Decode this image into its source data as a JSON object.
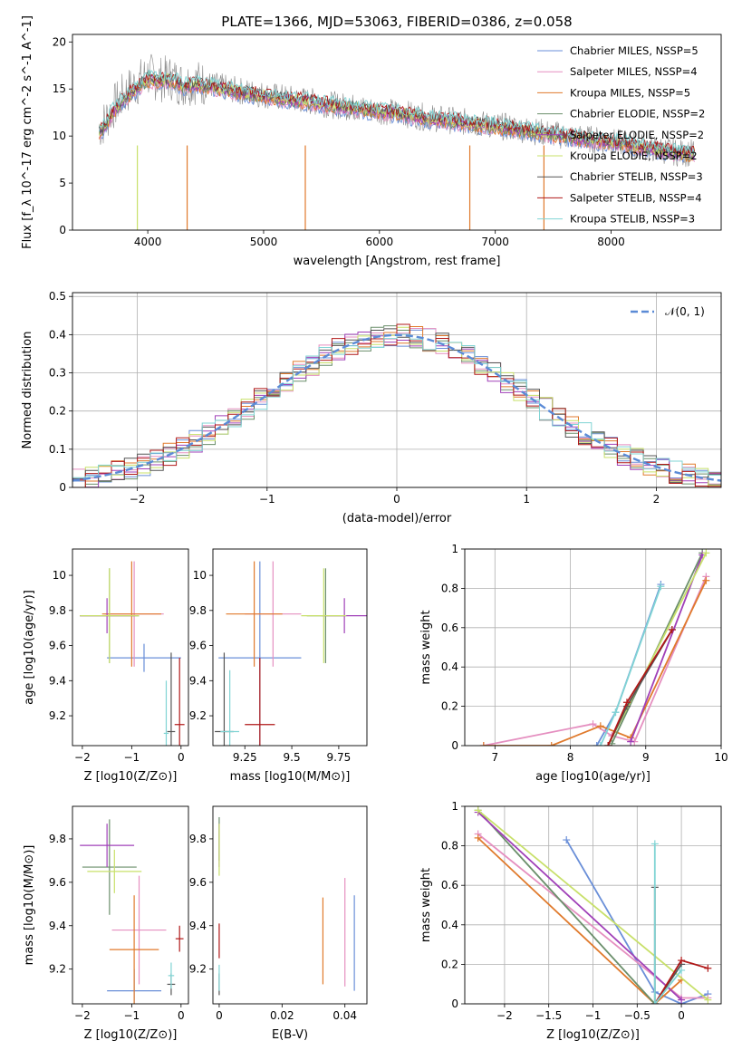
{
  "figure": {
    "title": "PLATE=1366, MJD=53063, FIBERID=0386, z=0.058"
  },
  "series": [
    {
      "name": "Chabrier MILES, N_SSP=5",
      "color": "#6a8fd8"
    },
    {
      "name": "Salpeter MILES, N_SSP=4",
      "color": "#e58fc0"
    },
    {
      "name": "Kroupa MILES, N_SSP=5",
      "color": "#e07a2c"
    },
    {
      "name": "Chabrier ELODIE, N_SSP=2",
      "color": "#6b8f6b"
    },
    {
      "name": "Salpeter ELODIE, N_SSP=2",
      "color": "#a040b8"
    },
    {
      "name": "Kroupa ELODIE, N_SSP=2",
      "color": "#c8e06a"
    },
    {
      "name": "Chabrier STELIB, N_SSP=3",
      "color": "#555555"
    },
    {
      "name": "Salpeter STELIB, N_SSP=4",
      "color": "#b01818"
    },
    {
      "name": "Kroupa STELIB, N_SSP=3",
      "color": "#80d4d4"
    }
  ],
  "chart_data": [
    {
      "id": "spectrum",
      "type": "line",
      "xlabel": "wavelength [Angstrom, rest frame]",
      "ylabel": "Flux [f_λ 10^-17 erg cm^-2 s^-1 A^-1]",
      "xlim": [
        3350,
        8950
      ],
      "ylim": [
        0,
        20.8
      ],
      "xticks": [
        4000,
        5000,
        6000,
        7000,
        8000
      ],
      "yticks": [
        0,
        5,
        10,
        15,
        20
      ],
      "x": [
        3600,
        3700,
        3800,
        3900,
        4000,
        4100,
        4200,
        4300,
        4400,
        4500,
        4600,
        4700,
        4800,
        4900,
        5000,
        5200,
        5400,
        5600,
        5800,
        6000,
        6200,
        6400,
        6600,
        6800,
        7000,
        7200,
        7400,
        7600,
        7800,
        8000,
        8200,
        8400,
        8600
      ],
      "data_flux": [
        11.0,
        13.0,
        14.5,
        15.5,
        16.5,
        16.0,
        16.2,
        15.5,
        15.8,
        15.5,
        15.3,
        15.0,
        14.8,
        14.6,
        14.4,
        14.0,
        13.7,
        13.3,
        13.0,
        12.7,
        12.4,
        12.0,
        11.7,
        11.4,
        11.1,
        10.8,
        10.4,
        10.0,
        9.7,
        9.4,
        9.0,
        8.6,
        8.2
      ],
      "model_flux": [
        10.5,
        12.5,
        14.0,
        15.0,
        16.0,
        15.8,
        16.0,
        15.3,
        15.5,
        15.3,
        15.1,
        14.9,
        14.6,
        14.4,
        14.2,
        13.9,
        13.6,
        13.2,
        12.9,
        12.6,
        12.3,
        11.9,
        11.6,
        11.3,
        11.0,
        10.7,
        10.3,
        9.9,
        9.6,
        9.3,
        8.9,
        8.5,
        8.1
      ],
      "legend": "upper right"
    },
    {
      "id": "residuals",
      "type": "line",
      "xlabel": "(data-model)/error",
      "ylabel": "Normed distribution",
      "xlim": [
        -2.5,
        2.5
      ],
      "ylim": [
        0,
        0.51
      ],
      "xticks": [
        -2,
        -1,
        0,
        1,
        2
      ],
      "yticks": [
        0.0,
        0.1,
        0.2,
        0.3,
        0.4,
        0.5
      ],
      "reference_curve": "N(0,1)",
      "grid": true,
      "legend_label": "𝒩(0, 1)"
    },
    {
      "id": "age-vs-Z",
      "type": "scatter",
      "xlabel": "Z [log10(Z/Z⊙)]",
      "ylabel": "age [log10(age/yr)]",
      "xlim": [
        -2.2,
        0.15
      ],
      "ylim": [
        9.03,
        10.15
      ],
      "xticks": [
        -2,
        -1,
        0
      ],
      "yticks": [
        9.2,
        9.4,
        9.6,
        9.8,
        10.0
      ],
      "points": [
        {
          "x": -0.75,
          "y": 9.53,
          "xerr": 0.75,
          "yerr": 0.08
        },
        {
          "x": -0.95,
          "y": 9.78,
          "xerr": 0.6,
          "yerr": 0.3
        },
        {
          "x": -1.0,
          "y": 9.78,
          "xerr": 0.6,
          "yerr": 0.3
        },
        {
          "x": -1.45,
          "y": 9.77,
          "xerr": 0.6,
          "yerr": 0.27
        },
        {
          "x": -1.5,
          "y": 9.77,
          "xerr": 0.55,
          "yerr": 0.1
        },
        {
          "x": -1.45,
          "y": 9.77,
          "xerr": 0.6,
          "yerr": 0.27
        },
        {
          "x": -0.2,
          "y": 9.11,
          "xerr": 0.08,
          "yerr": 0.45
        },
        {
          "x": -0.03,
          "y": 9.15,
          "xerr": 0.1,
          "yerr": 0.38
        },
        {
          "x": -0.3,
          "y": 9.1,
          "xerr": 0.05,
          "yerr": 0.3
        }
      ]
    },
    {
      "id": "age-vs-mass",
      "type": "scatter",
      "xlabel": "mass [log10(M/M⊙)]",
      "ylabel": "",
      "xlim": [
        9.08,
        9.9
      ],
      "ylim": [
        9.03,
        10.15
      ],
      "xticks": [
        9.25,
        9.5,
        9.75
      ],
      "yticks": [
        9.2,
        9.4,
        9.6,
        9.8,
        10.0
      ],
      "points": [
        {
          "x": 9.33,
          "y": 9.53,
          "xerr": 0.22,
          "yerr": 0.55
        },
        {
          "x": 9.4,
          "y": 9.78,
          "xerr": 0.15,
          "yerr": 0.3
        },
        {
          "x": 9.3,
          "y": 9.78,
          "xerr": 0.15,
          "yerr": 0.3
        },
        {
          "x": 9.68,
          "y": 9.77,
          "xerr": 0.1,
          "yerr": 0.27
        },
        {
          "x": 9.78,
          "y": 9.77,
          "xerr": 0.12,
          "yerr": 0.1
        },
        {
          "x": 9.67,
          "y": 9.77,
          "xerr": 0.12,
          "yerr": 0.27
        },
        {
          "x": 9.14,
          "y": 9.11,
          "xerr": 0.05,
          "yerr": 0.45
        },
        {
          "x": 9.33,
          "y": 9.15,
          "xerr": 0.08,
          "yerr": 0.38
        },
        {
          "x": 9.17,
          "y": 9.11,
          "xerr": 0.05,
          "yerr": 0.35
        }
      ]
    },
    {
      "id": "weight-vs-age",
      "type": "line",
      "xlabel": "age [log10(age/yr)]",
      "ylabel": "mass weight",
      "xlim": [
        6.6,
        10.0
      ],
      "ylim": [
        0,
        1.0
      ],
      "xticks": [
        7,
        8,
        9,
        10
      ],
      "yticks": [
        0.0,
        0.2,
        0.4,
        0.6,
        0.8,
        1.0
      ],
      "grid": true,
      "series": [
        {
          "x": [
            8.35,
            8.6,
            9.2
          ],
          "y": [
            0.0,
            0.17,
            0.82
          ]
        },
        {
          "x": [
            6.85,
            8.3,
            8.55,
            8.85,
            9.8
          ],
          "y": [
            0.0,
            0.11,
            0.05,
            0.02,
            0.86
          ]
        },
        {
          "x": [
            6.85,
            7.75,
            8.4,
            8.8,
            9.8
          ],
          "y": [
            0.0,
            0.0,
            0.1,
            0.04,
            0.84
          ]
        },
        {
          "x": [
            8.55,
            9.75
          ],
          "y": [
            0.01,
            0.98
          ]
        },
        {
          "x": [
            8.8,
            9.75
          ],
          "y": [
            0.02,
            0.97
          ]
        },
        {
          "x": [
            8.5,
            9.8
          ],
          "y": [
            0.0,
            0.98
          ]
        },
        {
          "x": [
            8.5,
            8.75,
            9.35
          ],
          "y": [
            0.0,
            0.2,
            0.59
          ]
        },
        {
          "x": [
            8.5,
            8.75,
            9.35
          ],
          "y": [
            0.0,
            0.22,
            0.59
          ]
        },
        {
          "x": [
            8.4,
            8.6,
            9.2
          ],
          "y": [
            0.0,
            0.17,
            0.81
          ]
        }
      ]
    },
    {
      "id": "mass-vs-Z",
      "type": "scatter",
      "xlabel": "Z [log10(Z/Z⊙)]",
      "ylabel": "mass [log10(M/M⊙)]",
      "xlim": [
        -2.2,
        0.15
      ],
      "ylim": [
        9.04,
        9.95
      ],
      "xticks": [
        -2,
        -1,
        0
      ],
      "yticks": [
        9.2,
        9.4,
        9.6,
        9.8
      ],
      "points": [
        {
          "x": -0.95,
          "y": 9.1,
          "xerr": 0.55,
          "yerr": 0.1
        },
        {
          "x": -0.85,
          "y": 9.38,
          "xerr": 0.55,
          "yerr": 0.25
        },
        {
          "x": -0.95,
          "y": 9.29,
          "xerr": 0.5,
          "yerr": 0.25
        },
        {
          "x": -1.45,
          "y": 9.67,
          "xerr": 0.55,
          "yerr": 0.22
        },
        {
          "x": -1.5,
          "y": 9.77,
          "xerr": 0.55,
          "yerr": 0.1
        },
        {
          "x": -1.35,
          "y": 9.65,
          "xerr": 0.55,
          "yerr": 0.1
        },
        {
          "x": -0.2,
          "y": 9.13,
          "xerr": 0.08,
          "yerr": 0.05
        },
        {
          "x": -0.03,
          "y": 9.34,
          "xerr": 0.08,
          "yerr": 0.06
        },
        {
          "x": -0.2,
          "y": 9.17,
          "xerr": 0.06,
          "yerr": 0.06
        }
      ]
    },
    {
      "id": "mass-vs-ebv",
      "type": "scatter",
      "xlabel": "E(B-V)",
      "ylabel": "",
      "xlim": [
        -0.002,
        0.047
      ],
      "ylim": [
        9.04,
        9.95
      ],
      "xticks": [
        0.0,
        0.02,
        0.04
      ],
      "yticks": [
        9.2,
        9.4,
        9.6,
        9.8
      ],
      "points": [
        {
          "x": 0.043,
          "y": 9.32,
          "yerr": 0.22
        },
        {
          "x": 0.04,
          "y": 9.37,
          "yerr": 0.25
        },
        {
          "x": 0.033,
          "y": 9.33,
          "yerr": 0.2
        },
        {
          "x": 0.0,
          "y": 9.8,
          "yerr": 0.1
        },
        {
          "x": 0.0,
          "y": 9.77,
          "yerr": 0.1
        },
        {
          "x": 0.0,
          "y": 9.75,
          "yerr": 0.12
        },
        {
          "x": 0.0,
          "y": 9.13,
          "yerr": 0.05
        },
        {
          "x": 0.0,
          "y": 9.33,
          "yerr": 0.08
        },
        {
          "x": 0.0,
          "y": 9.16,
          "yerr": 0.06
        }
      ]
    },
    {
      "id": "weight-vs-Z",
      "type": "line",
      "xlabel": "Z [log10(Z/Z⊙)]",
      "ylabel": "mass weight",
      "xlim": [
        -2.45,
        0.45
      ],
      "ylim": [
        0,
        1.0
      ],
      "xticks": [
        -2.0,
        -1.5,
        -1.0,
        -0.5,
        0.0
      ],
      "yticks": [
        0.0,
        0.2,
        0.4,
        0.6,
        0.8,
        1.0
      ],
      "grid": true,
      "series": [
        {
          "x": [
            -1.3,
            -0.3,
            0.0,
            0.3
          ],
          "y": [
            0.83,
            0.06,
            0.0,
            0.05
          ]
        },
        {
          "x": [
            -2.3,
            0.0,
            0.3
          ],
          "y": [
            0.86,
            0.03,
            0.03
          ]
        },
        {
          "x": [
            -2.3,
            -0.3,
            0.0
          ],
          "y": [
            0.84,
            0.0,
            0.12
          ]
        },
        {
          "x": [
            -2.3,
            -0.3
          ],
          "y": [
            0.98,
            0.0
          ]
        },
        {
          "x": [
            -2.3,
            0.0
          ],
          "y": [
            0.97,
            0.02
          ]
        },
        {
          "x": [
            -2.3,
            0.3
          ],
          "y": [
            0.98,
            0.02
          ]
        },
        {
          "x": [
            -0.3,
            -0.3,
            0.0
          ],
          "y": [
            0.59,
            0.0,
            0.2
          ]
        },
        {
          "x": [
            -0.3,
            0.0,
            0.3
          ],
          "y": [
            0.0,
            0.22,
            0.18
          ]
        },
        {
          "x": [
            -0.3,
            -0.3,
            0.0
          ],
          "y": [
            0.81,
            0.0,
            0.17
          ]
        }
      ]
    }
  ]
}
